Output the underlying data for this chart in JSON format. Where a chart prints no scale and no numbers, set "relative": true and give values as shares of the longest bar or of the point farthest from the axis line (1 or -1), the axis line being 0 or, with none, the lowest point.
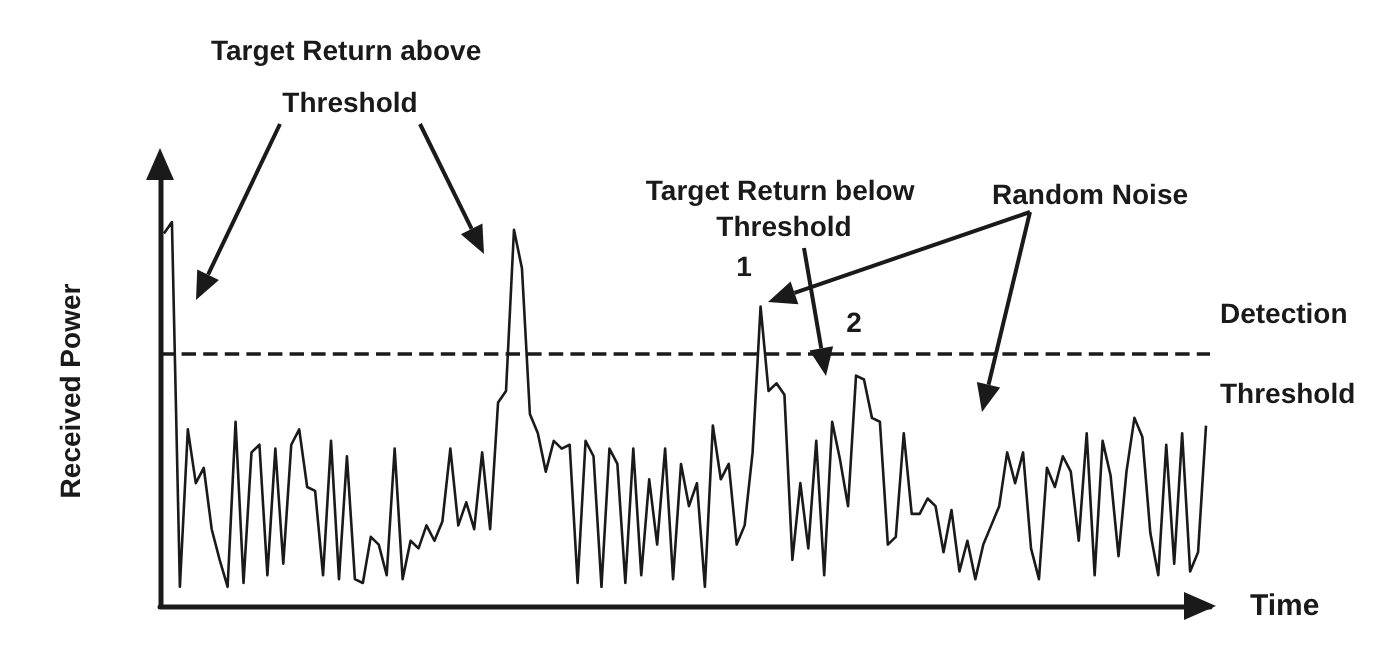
{
  "chart_data": {
    "type": "line",
    "relative": true,
    "xlabel": "Time",
    "ylabel": "Received Power",
    "color": "#1a1a1a",
    "marker": "none",
    "line_style": "solid",
    "grid": false,
    "categories": [
      null,
      null,
      null,
      null,
      null,
      null,
      null,
      null,
      null,
      null,
      null,
      null,
      null,
      null,
      null,
      null,
      null,
      null,
      null,
      null,
      null,
      null,
      null,
      null,
      null,
      null,
      null,
      null,
      null,
      null,
      null,
      null,
      null,
      null,
      null,
      null,
      null,
      null,
      null,
      null,
      null,
      null,
      null,
      null,
      null,
      null,
      null,
      null,
      null,
      null,
      null,
      null,
      null,
      null,
      null,
      null,
      null,
      null,
      null,
      null,
      null,
      null,
      null,
      null,
      null,
      null,
      null,
      null,
      null,
      null,
      null,
      null,
      null,
      null,
      null,
      null,
      null,
      null,
      null,
      null,
      null,
      null,
      null,
      null,
      null,
      null,
      null,
      null,
      null,
      null,
      null,
      null,
      null,
      null,
      null,
      null,
      null,
      null,
      null,
      null,
      null,
      null,
      null,
      null,
      null,
      null,
      null,
      null,
      null,
      null,
      null,
      null,
      null,
      null,
      null,
      null,
      null,
      null,
      null,
      null,
      null,
      null,
      null,
      null,
      null,
      null,
      null,
      null,
      null,
      null,
      null,
      null
    ],
    "values": [
      0.97,
      1.0,
      0.05,
      0.46,
      0.32,
      0.36,
      0.2,
      0.12,
      0.05,
      0.48,
      0.06,
      0.4,
      0.42,
      0.08,
      0.41,
      0.11,
      0.42,
      0.46,
      0.31,
      0.3,
      0.08,
      0.43,
      0.07,
      0.39,
      0.07,
      0.06,
      0.18,
      0.16,
      0.08,
      0.41,
      0.07,
      0.17,
      0.15,
      0.21,
      0.17,
      0.22,
      0.41,
      0.21,
      0.27,
      0.2,
      0.4,
      0.2,
      0.53,
      0.56,
      0.98,
      0.88,
      0.5,
      0.45,
      0.35,
      0.43,
      0.41,
      0.42,
      0.06,
      0.43,
      0.39,
      0.05,
      0.41,
      0.37,
      0.06,
      0.41,
      0.08,
      0.33,
      0.16,
      0.41,
      0.07,
      0.37,
      0.26,
      0.32,
      0.05,
      0.47,
      0.33,
      0.37,
      0.16,
      0.21,
      0.4,
      0.78,
      0.56,
      0.58,
      0.55,
      0.12,
      0.32,
      0.15,
      0.43,
      0.08,
      0.48,
      0.38,
      0.26,
      0.6,
      0.59,
      0.49,
      0.48,
      0.16,
      0.18,
      0.45,
      0.24,
      0.24,
      0.28,
      0.26,
      0.14,
      0.25,
      0.09,
      0.17,
      0.07,
      0.16,
      0.21,
      0.26,
      0.4,
      0.32,
      0.4,
      0.15,
      0.07,
      0.36,
      0.31,
      0.39,
      0.35,
      0.17,
      0.45,
      0.08,
      0.43,
      0.34,
      0.13,
      0.35,
      0.49,
      0.44,
      0.19,
      0.08,
      0.42,
      0.11,
      0.45,
      0.09,
      0.14,
      0.47
    ],
    "ref_lines": [
      {
        "axis": "y",
        "value": 0.66,
        "label": "Detection Threshold",
        "line_style": "dashed"
      }
    ],
    "annotations": [
      "Target Return above Threshold",
      "Target Return below Threshold",
      "Random Noise",
      "1",
      "2"
    ]
  }
}
